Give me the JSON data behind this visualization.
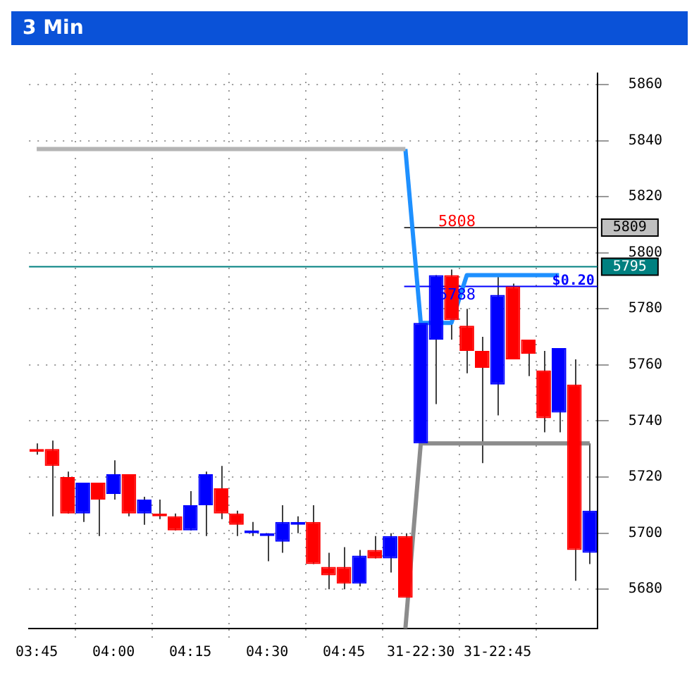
{
  "chart_data": {
    "type": "candlestick",
    "title": "3 Min",
    "categories": [
      "03:45",
      null,
      null,
      null,
      null,
      "04:00",
      null,
      null,
      null,
      null,
      "04:15",
      null,
      null,
      null,
      null,
      "04:30",
      null,
      null,
      null,
      null,
      "04:45",
      null,
      null,
      null,
      null,
      "31-22:30",
      null,
      null,
      null,
      null,
      "31-22:45",
      null,
      null,
      null,
      null,
      null,
      null
    ],
    "ohlc": [
      [
        5730,
        5732,
        5728,
        5729
      ],
      [
        5730,
        5733,
        5706,
        5724
      ],
      [
        5720,
        5722,
        5707,
        5707
      ],
      [
        5707,
        5718,
        5704,
        5718
      ],
      [
        5718,
        5718,
        5699,
        5712
      ],
      [
        5714,
        5726,
        5712,
        5721
      ],
      [
        5721,
        5721,
        5706,
        5707
      ],
      [
        5707,
        5713,
        5703,
        5712
      ],
      [
        5707,
        5712,
        5705,
        5706
      ],
      [
        5706,
        5707,
        5701,
        5701
      ],
      [
        5701,
        5715,
        5701,
        5710
      ],
      [
        5710,
        5722,
        5699,
        5721
      ],
      [
        5716,
        5724,
        5705,
        5707
      ],
      [
        5707,
        5708,
        5699,
        5703
      ],
      [
        5700,
        5704,
        5699,
        5701
      ],
      [
        5699,
        5700,
        5690,
        5700
      ],
      [
        5697,
        5710,
        5693,
        5704
      ],
      [
        5703,
        5706,
        5700,
        5704
      ],
      [
        5704,
        5710,
        5689,
        5689
      ],
      [
        5688,
        5693,
        5680,
        5685
      ],
      [
        5688,
        5695,
        5680,
        5682
      ],
      [
        5682,
        5694,
        5681,
        5692
      ],
      [
        5694,
        5699,
        5691,
        5691
      ],
      [
        5691,
        5700,
        5686,
        5699
      ],
      [
        5699,
        5700,
        5677,
        5677
      ],
      [
        5732,
        5775,
        5732,
        5775
      ],
      [
        5769,
        5792,
        5746,
        5792
      ],
      [
        5792,
        5794,
        5769,
        5776
      ],
      [
        5774,
        5780,
        5757,
        5765
      ],
      [
        5765,
        5770,
        5725,
        5759
      ],
      [
        5753,
        5792,
        5742,
        5785
      ],
      [
        5788,
        5789,
        5762,
        5762
      ],
      [
        5769,
        5769,
        5756,
        5764
      ],
      [
        5758,
        5765,
        5736,
        5741
      ],
      [
        5743,
        5766,
        5736,
        5766
      ],
      [
        5753,
        5762,
        5683,
        5694
      ],
      [
        5693,
        5732,
        5689,
        5708
      ]
    ],
    "series": [
      {
        "type": "line",
        "color": "#b4b4b4",
        "values": [
          5837,
          5837,
          5837,
          5837,
          5837,
          5837,
          5837,
          5837,
          5837,
          5837,
          5837,
          5837,
          5837,
          5837,
          5837,
          5837,
          5837,
          5837,
          5837,
          5837,
          5837,
          5837,
          5837,
          5837,
          5837,
          null,
          null,
          null,
          null,
          null,
          null,
          null,
          null,
          null,
          null,
          null,
          null
        ]
      },
      {
        "type": "line",
        "color": "#1e90ff",
        "values": [
          null,
          null,
          null,
          null,
          null,
          null,
          null,
          null,
          null,
          null,
          null,
          null,
          null,
          null,
          null,
          null,
          null,
          null,
          null,
          null,
          null,
          null,
          null,
          null,
          5837,
          5775,
          null,
          5775,
          5792,
          5792,
          5792,
          5792,
          5792,
          5792,
          5792,
          null,
          null
        ]
      },
      {
        "type": "line",
        "color": "#8c8c8c",
        "values": [
          null,
          null,
          null,
          null,
          null,
          null,
          null,
          null,
          null,
          null,
          null,
          null,
          null,
          null,
          null,
          null,
          null,
          null,
          null,
          null,
          null,
          null,
          null,
          null,
          5666,
          5732,
          5732,
          5732,
          5732,
          5732,
          5732,
          5732,
          5732,
          5732,
          5732,
          null,
          5732
        ]
      }
    ],
    "ylim": [
      5666,
      5864
    ],
    "yticks": [
      5680,
      5700,
      5720,
      5740,
      5760,
      5780,
      5800,
      5820,
      5840,
      5860
    ],
    "ref_lines": [
      {
        "axis": "y",
        "value": 5809,
        "label": "5809",
        "color": "#404040"
      },
      {
        "axis": "y",
        "value": 5795,
        "label": "5795",
        "color": "#008080"
      },
      {
        "axis": "y",
        "value": 5788,
        "label": "5788",
        "color": "#0000ff"
      }
    ],
    "annotations": [
      {
        "text": "5808",
        "y": 5811
      },
      {
        "text": "$0.20",
        "y": 5790
      }
    ],
    "grid": true,
    "legend": false
  }
}
